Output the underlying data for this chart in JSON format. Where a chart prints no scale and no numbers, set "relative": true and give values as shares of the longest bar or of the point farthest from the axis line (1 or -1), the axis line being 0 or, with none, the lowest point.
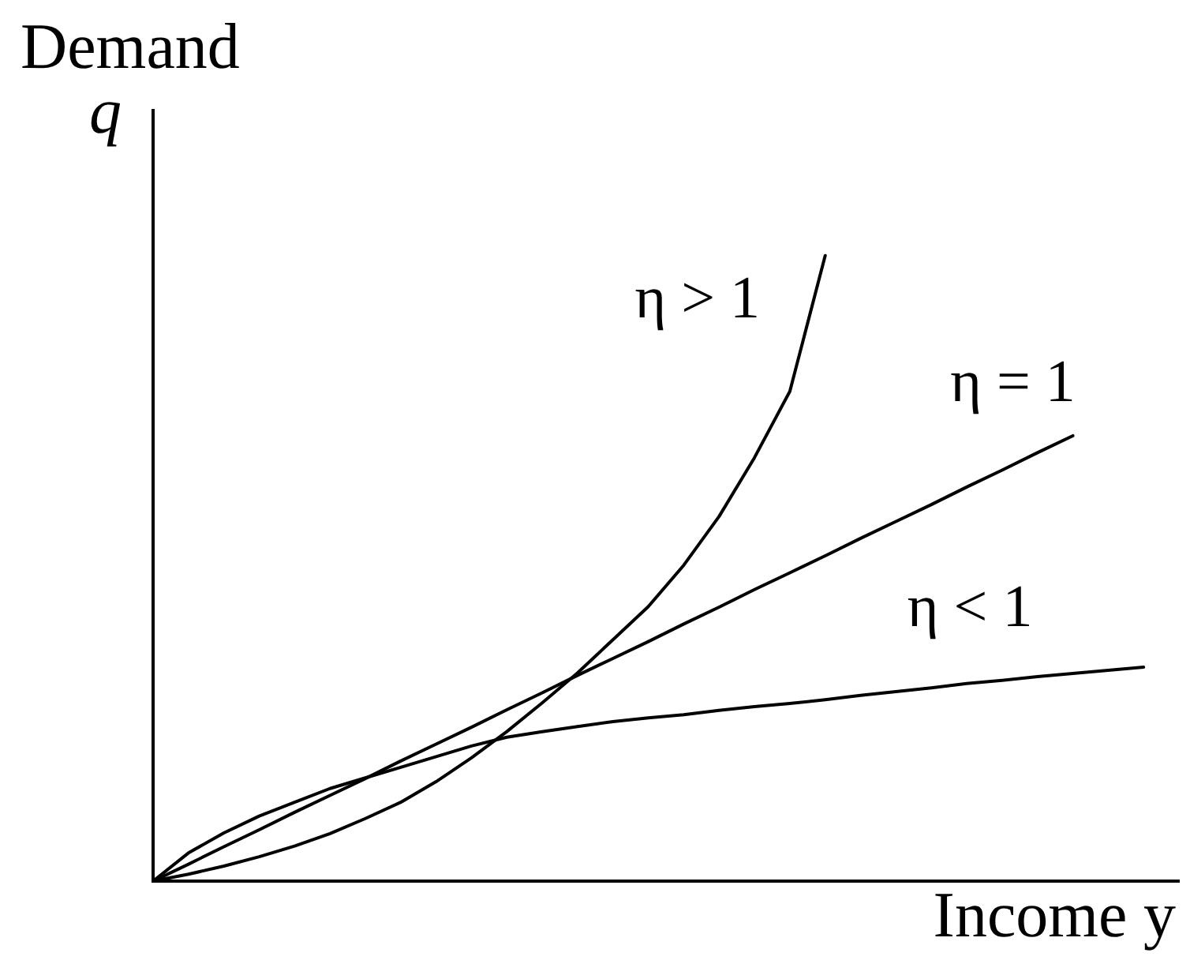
{
  "chart_data": {
    "type": "line",
    "relative": true,
    "xlabel": "Income y",
    "ylabel": "Demand q",
    "categories": [
      null,
      null,
      null,
      null,
      null,
      null,
      null,
      null,
      null,
      null,
      null,
      null,
      null,
      null,
      null,
      null,
      null,
      null,
      null,
      null,
      null,
      null,
      null,
      null,
      null,
      null,
      null,
      null,
      null,
      null
    ],
    "series": [
      {
        "name": "η > 1",
        "color": "#000000",
        "values": [
          0,
          0.011,
          0.024,
          0.039,
          0.056,
          0.076,
          0.1,
          0.126,
          0.159,
          0.197,
          0.239,
          0.285,
          0.333,
          0.386,
          0.439,
          0.505,
          0.583,
          0.677,
          0.783,
          1,
          null,
          null,
          null,
          null,
          null,
          null,
          null,
          null,
          null,
          null
        ]
      },
      {
        "name": "η = 1",
        "color": "#000000",
        "values": [
          0,
          0.027,
          0.055,
          0.082,
          0.11,
          0.137,
          0.164,
          0.192,
          0.219,
          0.246,
          0.274,
          0.301,
          0.329,
          0.356,
          0.383,
          0.411,
          0.438,
          0.466,
          0.493,
          0.52,
          0.548,
          0.575,
          0.602,
          0.63,
          0.657,
          0.685,
          0.712,
          null,
          null,
          null
        ]
      },
      {
        "name": "η < 1",
        "color": "#000000",
        "values": [
          0,
          0.045,
          0.077,
          0.104,
          0.126,
          0.148,
          0.165,
          0.182,
          0.199,
          0.216,
          0.23,
          0.239,
          0.247,
          0.255,
          0.261,
          0.266,
          0.273,
          0.279,
          0.284,
          0.29,
          0.297,
          0.303,
          0.309,
          0.316,
          0.321,
          0.327,
          0.332,
          0.337,
          0.342,
          null
        ]
      }
    ]
  }
}
